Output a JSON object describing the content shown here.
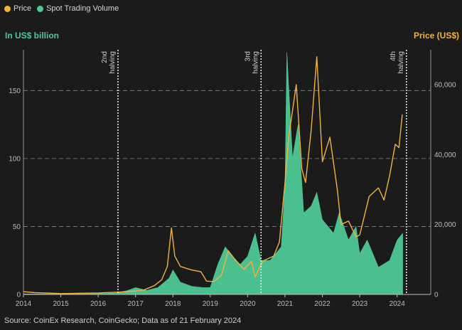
{
  "legend": [
    {
      "label": "Price",
      "color": "#f2b33d"
    },
    {
      "label": "Spot Trading Volume",
      "color": "#4ec995"
    }
  ],
  "left_axis_title": "In US$ billion",
  "right_axis_title": "Price (US$)",
  "source": "Source: CoinEx Research, CoinGecko; Data as of 21 February 2024",
  "chart_data": {
    "type": "area",
    "grid": "dashed horizontal at 50 and 100",
    "x_axis": {
      "range": [
        2014.0,
        2024.9
      ],
      "ticks": [
        "2014",
        "2015",
        "2016",
        "2017",
        "2018",
        "2019",
        "2020",
        "2021",
        "2022",
        "2023",
        "2024"
      ]
    },
    "y_left": {
      "label": "In US$ billion",
      "range": [
        0,
        180
      ],
      "ticks": [
        0,
        50,
        100,
        150
      ]
    },
    "y_right": {
      "label": "Price (US$)",
      "range": [
        0,
        70000
      ],
      "ticks": [
        "0",
        "20,000",
        "40,000",
        "60,000"
      ]
    },
    "annotations": [
      {
        "x": 2016.53,
        "line1": "2nd",
        "line2": "halving"
      },
      {
        "x": 2020.36,
        "line1": "3rd",
        "line2": "halving"
      },
      {
        "x": 2024.25,
        "line1": "4th",
        "line2": "halving"
      }
    ],
    "series": [
      {
        "name": "Spot Trading Volume",
        "axis": "left",
        "points": [
          [
            2014.0,
            0.4
          ],
          [
            2014.5,
            0.3
          ],
          [
            2015.0,
            0.4
          ],
          [
            2015.5,
            0.5
          ],
          [
            2016.0,
            0.6
          ],
          [
            2016.5,
            1.0
          ],
          [
            2016.8,
            3
          ],
          [
            2017.0,
            5
          ],
          [
            2017.3,
            3
          ],
          [
            2017.6,
            5
          ],
          [
            2017.9,
            12
          ],
          [
            2018.0,
            18
          ],
          [
            2018.2,
            9
          ],
          [
            2018.5,
            6
          ],
          [
            2018.8,
            5
          ],
          [
            2019.0,
            5
          ],
          [
            2019.2,
            22
          ],
          [
            2019.4,
            35
          ],
          [
            2019.6,
            28
          ],
          [
            2019.8,
            22
          ],
          [
            2020.0,
            28
          ],
          [
            2020.2,
            45
          ],
          [
            2020.36,
            25
          ],
          [
            2020.6,
            25
          ],
          [
            2020.9,
            35
          ],
          [
            2021.0,
            80
          ],
          [
            2021.05,
            178
          ],
          [
            2021.2,
            100
          ],
          [
            2021.35,
            125
          ],
          [
            2021.5,
            60
          ],
          [
            2021.7,
            65
          ],
          [
            2021.85,
            75
          ],
          [
            2022.0,
            55
          ],
          [
            2022.3,
            45
          ],
          [
            2022.45,
            60
          ],
          [
            2022.7,
            40
          ],
          [
            2022.9,
            50
          ],
          [
            2023.0,
            30
          ],
          [
            2023.2,
            40
          ],
          [
            2023.5,
            20
          ],
          [
            2023.8,
            25
          ],
          [
            2024.0,
            40
          ],
          [
            2024.15,
            45
          ]
        ]
      },
      {
        "name": "Price",
        "axis": "right",
        "points": [
          [
            2014.0,
            800
          ],
          [
            2014.3,
            500
          ],
          [
            2014.8,
            350
          ],
          [
            2015.0,
            250
          ],
          [
            2015.8,
            380
          ],
          [
            2016.0,
            420
          ],
          [
            2016.5,
            650
          ],
          [
            2016.9,
            900
          ],
          [
            2017.2,
            1200
          ],
          [
            2017.5,
            2500
          ],
          [
            2017.7,
            4200
          ],
          [
            2017.85,
            8000
          ],
          [
            2017.96,
            19000
          ],
          [
            2018.05,
            11000
          ],
          [
            2018.2,
            8000
          ],
          [
            2018.5,
            7000
          ],
          [
            2018.75,
            6500
          ],
          [
            2018.9,
            3800
          ],
          [
            2019.1,
            3700
          ],
          [
            2019.3,
            5500
          ],
          [
            2019.48,
            12500
          ],
          [
            2019.7,
            9500
          ],
          [
            2019.9,
            7200
          ],
          [
            2020.1,
            9500
          ],
          [
            2020.2,
            5000
          ],
          [
            2020.4,
            9500
          ],
          [
            2020.7,
            11000
          ],
          [
            2020.85,
            15000
          ],
          [
            2021.0,
            32000
          ],
          [
            2021.1,
            45000
          ],
          [
            2021.3,
            60000
          ],
          [
            2021.45,
            36000
          ],
          [
            2021.55,
            32000
          ],
          [
            2021.7,
            47000
          ],
          [
            2021.85,
            68000
          ],
          [
            2022.0,
            38000
          ],
          [
            2022.2,
            45000
          ],
          [
            2022.4,
            30000
          ],
          [
            2022.5,
            20000
          ],
          [
            2022.7,
            21000
          ],
          [
            2022.9,
            16500
          ],
          [
            2023.0,
            17000
          ],
          [
            2023.25,
            28000
          ],
          [
            2023.5,
            30500
          ],
          [
            2023.65,
            27000
          ],
          [
            2023.8,
            34000
          ],
          [
            2023.95,
            43000
          ],
          [
            2024.05,
            42000
          ],
          [
            2024.14,
            51500
          ]
        ]
      }
    ]
  }
}
